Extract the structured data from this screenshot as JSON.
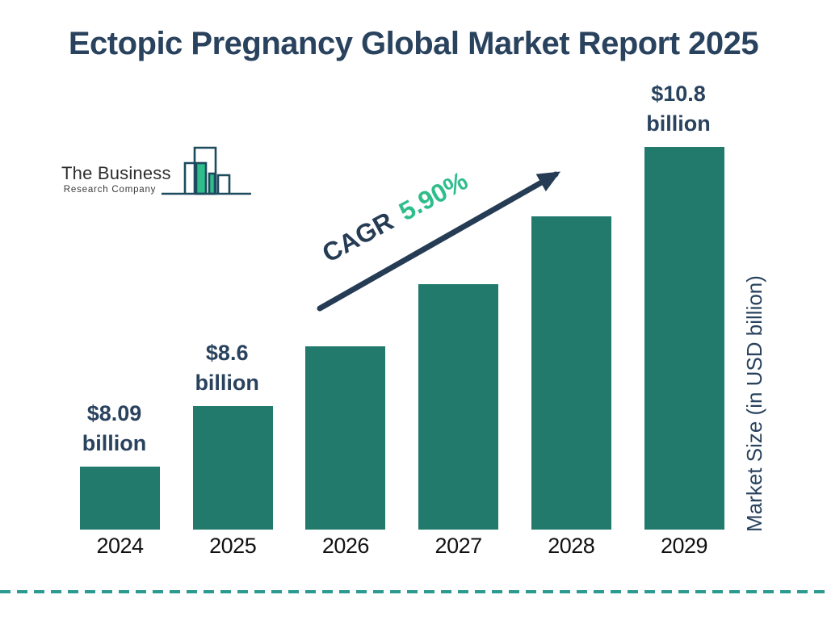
{
  "title": "Ectopic Pregnancy Global Market Report 2025",
  "logo": {
    "name": "The Business",
    "subtitle": "Research Company"
  },
  "cagr": {
    "label": "CAGR",
    "value": "5.90%"
  },
  "y_axis_label": "Market Size (in USD billion)",
  "chart_data": {
    "type": "bar",
    "title": "Ectopic Pregnancy Global Market Report 2025",
    "categories": [
      "2024",
      "2025",
      "2026",
      "2027",
      "2028",
      "2029"
    ],
    "values": [
      8.09,
      8.6,
      9.11,
      9.64,
      10.21,
      10.8
    ],
    "value_labels": [
      {
        "category": "2024",
        "line1": "$8.09",
        "line2": "billion"
      },
      {
        "category": "2025",
        "line1": "$8.6",
        "line2": "billion"
      },
      {
        "category": "2029",
        "line1": "$10.8",
        "line2": "billion"
      }
    ],
    "cagr_annotation": "CAGR 5.90%",
    "xlabel": "",
    "ylabel": "Market Size (in USD billion)",
    "grid": false,
    "legend": "none",
    "colors": {
      "bar_fill": "#217A6C",
      "navy_text": "#29425E",
      "accent_green": "#2FBD8C",
      "arrow_navy": "#253C54",
      "dashed_line": "#2B9A8F",
      "year_label": "#111111",
      "logo_text": "#2E2E2E",
      "logo_outline": "#1C4B5E"
    }
  }
}
